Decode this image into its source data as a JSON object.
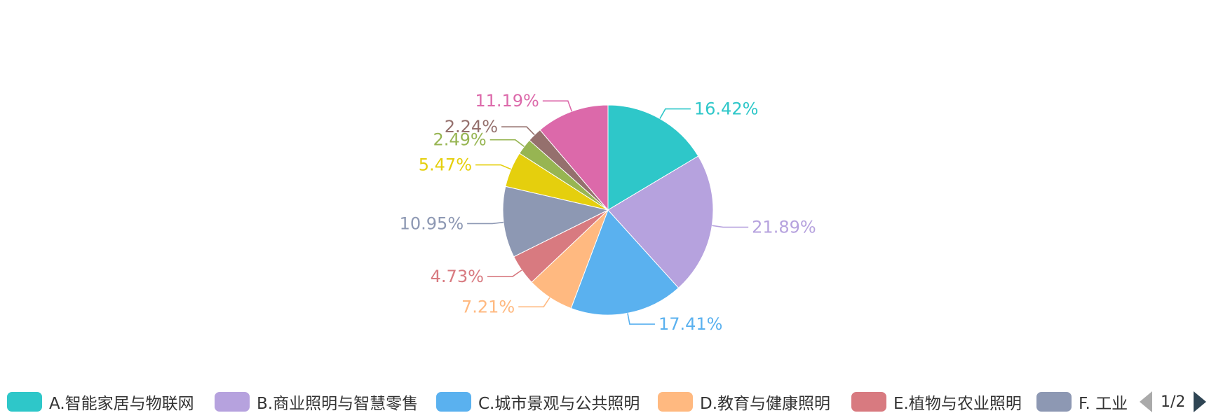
{
  "chart_data": {
    "type": "pie",
    "categories": [
      "A.智能家居与物联网",
      "B.商业照明与智慧零售",
      "C.城市景观与公共照明",
      "D.教育与健康照明",
      "E.植物与农业照明",
      "F. 工业",
      "",
      "",
      "",
      ""
    ],
    "values": [
      16.42,
      21.89,
      17.41,
      7.21,
      4.73,
      10.95,
      5.47,
      2.49,
      2.24,
      11.19
    ],
    "labels": [
      "16.42%",
      "21.89%",
      "17.41%",
      "7.21%",
      "4.73%",
      "10.95%",
      "5.47%",
      "2.49%",
      "2.24%",
      "11.19%"
    ],
    "colors": [
      "#2ec7c9",
      "#b6a2de",
      "#5ab1ef",
      "#ffb980",
      "#d87a80",
      "#8d98b3",
      "#e5cf0d",
      "#97b552",
      "#95706d",
      "#dc69aa"
    ],
    "start_angle_deg": 90,
    "direction": "clockwise",
    "legend_position": "bottom",
    "legend_page": "1/2"
  }
}
